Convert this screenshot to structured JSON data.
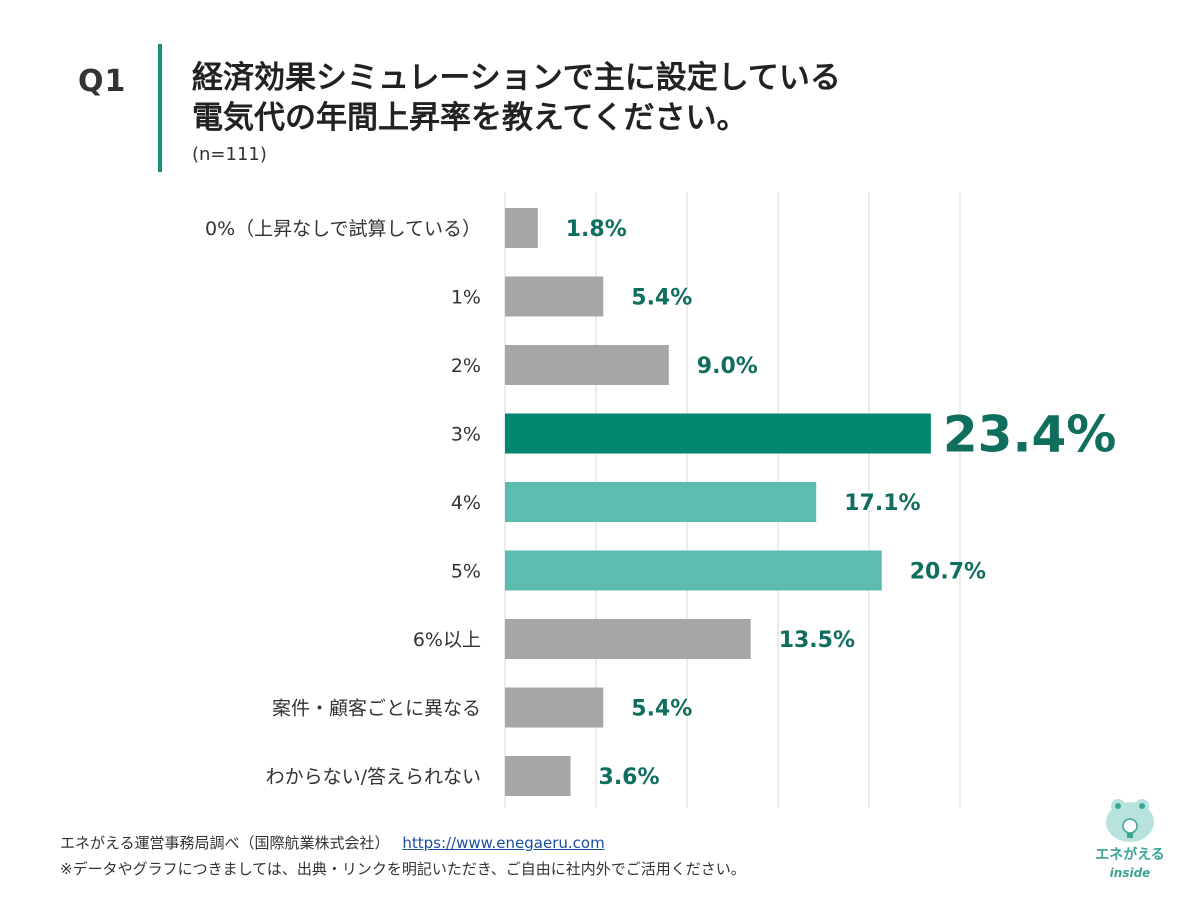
{
  "header": {
    "question_number": "Q1",
    "title_line1": "経済効果シミュレーションで主に設定している",
    "title_line2": "電気代の年間上昇率を教えてください。",
    "sample_size": "(n=111)"
  },
  "colors": {
    "accent": "#1a8f7e",
    "highlight": "#00876f",
    "teal_light": "#5cbcb0",
    "gray_bar": "#a6a6a6",
    "label_green": "#0f6e5e"
  },
  "chart_data": {
    "type": "bar",
    "orientation": "horizontal",
    "categories": [
      "0%（上昇なしで試算している）",
      "1%",
      "2%",
      "3%",
      "4%",
      "5%",
      "6%以上",
      "案件・顧客ごとに異なる",
      "わからない/答えられない"
    ],
    "values": [
      1.8,
      5.4,
      9.0,
      23.4,
      17.1,
      20.7,
      13.5,
      5.4,
      3.6
    ],
    "value_labels": [
      "1.8%",
      "5.4%",
      "9.0%",
      "23.4%",
      "17.1%",
      "20.7%",
      "13.5%",
      "5.4%",
      "3.6%"
    ],
    "bar_styles": [
      "gray",
      "gray",
      "gray",
      "highlight",
      "teal",
      "teal",
      "gray",
      "gray",
      "gray"
    ],
    "xlim": [
      0,
      25
    ],
    "grid": true,
    "title": "",
    "xlabel": "",
    "ylabel": ""
  },
  "footer": {
    "source": "エネがえる運営事務局調べ（国際航業株式会社）",
    "url": "https://www.enegaeru.com",
    "note": "※データやグラフにつきましては、出典・リンクを明記いただき、ご自由に社内外でご活用ください。"
  },
  "logo": {
    "name": "エネがえる",
    "sub": "inside"
  }
}
